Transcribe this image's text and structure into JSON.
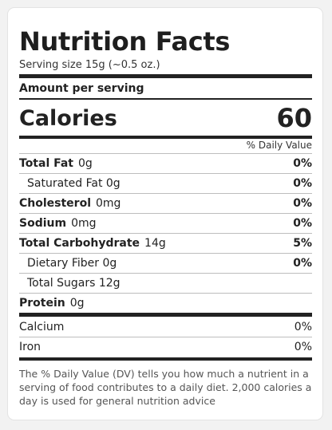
{
  "label": {
    "title": "Nutrition Facts",
    "serving_size": "Serving size 15g (~0.5 oz.)",
    "amount_per_serving": "Amount per serving",
    "calories_label": "Calories",
    "calories_value": "60",
    "daily_value_header": "% Daily Value",
    "nutrients": [
      {
        "name": "Total Fat",
        "amount": "0g",
        "dv": "0%"
      },
      {
        "name": "Saturated Fat 0g",
        "dv": "0%"
      },
      {
        "name": "Cholesterol",
        "amount": "0mg",
        "dv": "0%"
      },
      {
        "name": "Sodium",
        "amount": "0mg",
        "dv": "0%"
      },
      {
        "name": "Total Carbohydrate",
        "amount": "14g",
        "dv": "5%"
      },
      {
        "name": "Dietary Fiber 0g",
        "dv": "0%"
      },
      {
        "name": "Total Sugars 12g"
      },
      {
        "name": "Protein",
        "amount": "0g"
      }
    ],
    "vitamins": [
      {
        "name": "Calcium",
        "dv": "0%"
      },
      {
        "name": "Iron",
        "dv": "0%"
      }
    ],
    "footnote": "The % Daily Value (DV) tells you how much a nutrient in a serving of food contributes to a daily diet. 2,000 calories a day is used for general nutrition advice"
  }
}
